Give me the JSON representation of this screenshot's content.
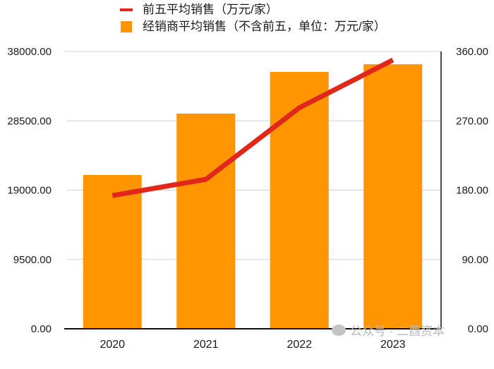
{
  "legend": {
    "items": [
      {
        "label": "前五平均销售（万元/家）",
        "type": "line",
        "color": "#e0271a"
      },
      {
        "label": "经销商平均销售（不含前五，单位：万元/家）",
        "type": "bar",
        "color": "#ff9500"
      }
    ]
  },
  "watermark": {
    "text": "公众号 · 二酉资本"
  },
  "chart_data": {
    "type": "bar+line",
    "title": "",
    "categories": [
      "2020",
      "2021",
      "2022",
      "2023"
    ],
    "series": [
      {
        "name": "经销商平均销售（不含前五，单位：万元/家）",
        "type": "bar",
        "axis": "left",
        "color": "#ff9500",
        "values": [
          21080,
          29490,
          35200,
          36250
        ]
      },
      {
        "name": "前五平均销售（万元/家）",
        "type": "line",
        "axis": "right",
        "color": "#e0271a",
        "values": [
          173,
          194,
          287,
          349
        ]
      }
    ],
    "left_axis": {
      "range": [
        0,
        38000
      ],
      "ticks": [
        "0.00",
        "9500.00",
        "19000.00",
        "28500.00",
        "38000.00"
      ]
    },
    "right_axis": {
      "range": [
        0,
        360
      ],
      "ticks": [
        "0.00",
        "90.00",
        "180.00",
        "270.00",
        "360.00"
      ]
    },
    "xlabel": "",
    "ylabel": "",
    "grid": true,
    "legend_position": "top"
  }
}
